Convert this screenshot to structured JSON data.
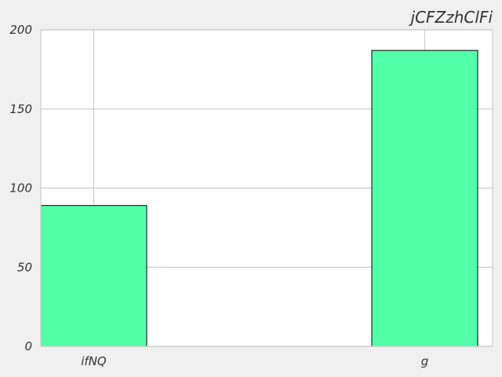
{
  "chart_data": {
    "type": "bar",
    "title": "jCFZzhClFi",
    "xlabel": "",
    "ylabel": "",
    "categories": [
      "ifNQ",
      "g"
    ],
    "values": [
      89,
      187
    ],
    "ylim": [
      0,
      200
    ],
    "yticks": [
      0,
      50,
      100,
      150,
      200
    ],
    "grid": true,
    "legend": "none",
    "colors": {
      "bar_fill": "#52ffa8",
      "bar_edge": "#000000",
      "plot_background": "#ffffff",
      "figure_background": "#f0f0f0",
      "grid": "#cccccc",
      "text": "#333333"
    }
  }
}
